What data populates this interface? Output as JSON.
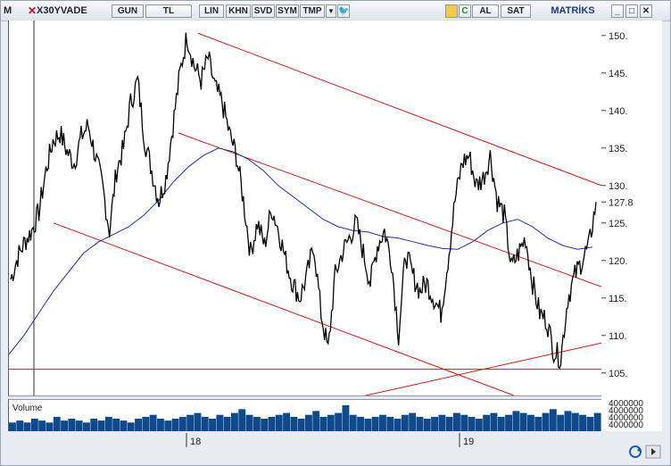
{
  "toolbar": {
    "menu_label": "M",
    "symbol": "X30YVADE",
    "period": "GUN",
    "currency": "TL",
    "scale": "LIN",
    "khn": "KHN",
    "svd": "SVD",
    "sym": "SYM",
    "tmp": "TMP",
    "buy_label": "AL",
    "sell_label": "SAT",
    "brand": "MATRİKS"
  },
  "volume": {
    "label": "Volume",
    "axis_label": "4000000"
  },
  "chart_data": {
    "type": "line",
    "title": "",
    "xlabel": "",
    "ylabel": "",
    "ylim": [
      102,
      152
    ],
    "yticks": [
      150,
      145,
      140,
      135,
      130,
      125,
      120,
      115,
      110,
      105
    ],
    "ytick_labels": [
      "150.",
      "145.",
      "140.",
      "135.",
      "130.",
      "125.",
      "120.",
      "115.",
      "110.",
      "105."
    ],
    "last_price": 127.8,
    "last_price_label": "127.8",
    "x_tick_labels": [
      "18",
      "19"
    ],
    "price_series": [
      117.5,
      120.5,
      122.5,
      124.0,
      126.5,
      132.0,
      136.0,
      137.0,
      134.5,
      133.0,
      136.5,
      138.0,
      134.0,
      130.0,
      124.0,
      132.0,
      135.0,
      141.0,
      144.0,
      136.0,
      132.0,
      128.0,
      131.0,
      138.0,
      145.0,
      150.0,
      146.0,
      144.0,
      147.0,
      143.0,
      141.0,
      137.0,
      134.0,
      128.0,
      121.0,
      125.0,
      122.0,
      127.0,
      124.0,
      120.0,
      117.0,
      115.0,
      118.0,
      122.0,
      113.0,
      108.0,
      118.0,
      121.0,
      123.0,
      125.0,
      121.0,
      117.0,
      122.0,
      124.0,
      120.0,
      110.0,
      121.0,
      118.0,
      116.0,
      117.0,
      115.0,
      113.0,
      120.0,
      128.0,
      133.0,
      134.0,
      130.0,
      131.0,
      134.0,
      128.0,
      126.0,
      119.0,
      121.0,
      123.0,
      117.0,
      113.0,
      112.0,
      108.0,
      107.0,
      115.0,
      118.0,
      120.0,
      122.0,
      127.8
    ],
    "moving_average": [
      107.5,
      110.0,
      113.0,
      116.0,
      118.5,
      121.0,
      122.5,
      123.5,
      124.5,
      126.0,
      128.0,
      130.5,
      132.5,
      134.0,
      135.0,
      134.5,
      133.5,
      132.0,
      130.0,
      128.5,
      127.0,
      125.5,
      124.5,
      124.0,
      123.8,
      123.2,
      123.0,
      122.5,
      122.0,
      121.6,
      121.5,
      122.5,
      124.0,
      125.0,
      125.5,
      124.5,
      123.0,
      122.0,
      121.5,
      121.8
    ],
    "lines": [
      {
        "name": "upper channel",
        "color": "#cc1a1a"
      },
      {
        "name": "middle channel",
        "color": "#cc1a1a"
      },
      {
        "name": "lower channel",
        "color": "#cc1a1a"
      },
      {
        "name": "support 105.5",
        "color": "#cc1a1a",
        "value": 105.5
      },
      {
        "name": "rising trendline",
        "color": "#cc1a1a"
      }
    ],
    "volume_values": [
      5,
      6,
      5,
      7,
      6,
      5,
      8,
      6,
      7,
      6,
      5,
      7,
      6,
      8,
      7,
      6,
      5,
      7,
      8,
      9,
      7,
      6,
      7,
      8,
      9,
      10,
      8,
      7,
      9,
      8,
      10,
      12,
      9,
      8,
      7,
      8,
      9,
      10,
      8,
      7,
      9,
      11,
      8,
      9,
      10,
      14,
      9,
      8,
      7,
      8,
      9,
      8,
      7,
      9,
      10,
      8,
      7,
      8,
      9,
      8,
      10,
      9,
      8,
      7,
      9,
      10,
      8,
      9,
      11,
      10,
      9,
      8,
      10,
      12,
      9,
      11,
      10,
      9,
      8,
      10
    ],
    "colors": {
      "price": "#000000",
      "ma": "#1f2fa8",
      "channel": "#cc1a1a",
      "volume": "#0e4a8c"
    }
  }
}
